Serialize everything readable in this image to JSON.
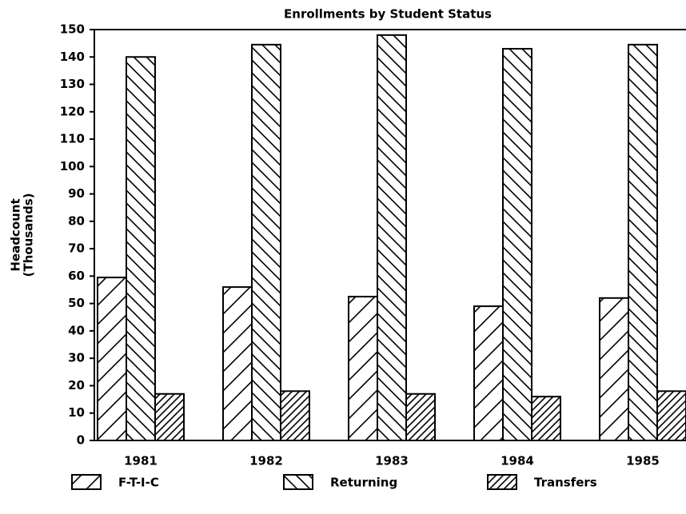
{
  "chart_data": {
    "type": "bar",
    "title": "Enrollments by Student Status",
    "ylabel": [
      "Headcount",
      "(Thousands)"
    ],
    "categories": [
      "1981",
      "1982",
      "1983",
      "1984",
      "1985"
    ],
    "series": [
      {
        "name": "F-T-I-C",
        "color": "#000000",
        "values": [
          59.5,
          56,
          52.5,
          49,
          52
        ]
      },
      {
        "name": "Returning",
        "color": "#000000",
        "values": [
          140,
          144.5,
          148,
          143,
          144.5
        ]
      },
      {
        "name": "Transfers",
        "color": "#000000",
        "values": [
          17,
          18,
          17,
          16,
          18
        ]
      }
    ],
    "ylim": [
      0,
      150
    ],
    "yticks": [
      0,
      10,
      20,
      30,
      40,
      50,
      60,
      70,
      80,
      90,
      100,
      110,
      120,
      130,
      140,
      150
    ],
    "grid": false,
    "legend": "bottom"
  }
}
